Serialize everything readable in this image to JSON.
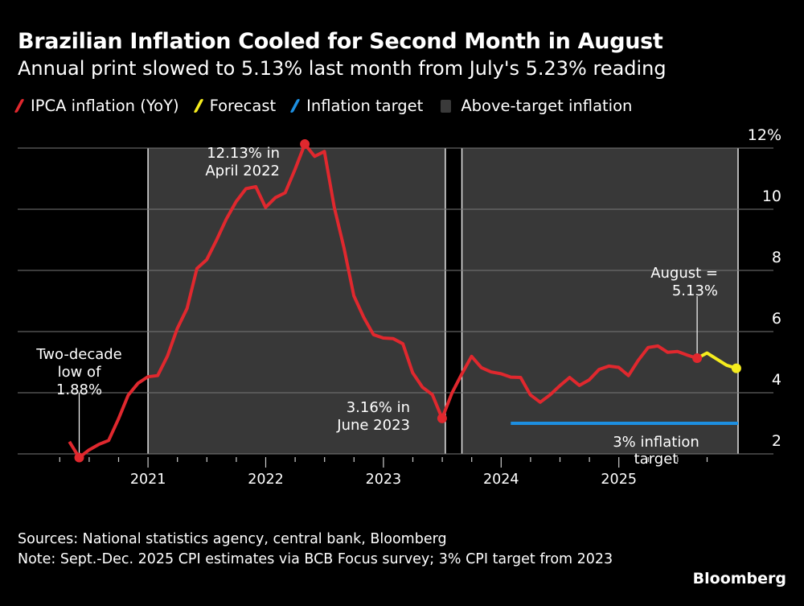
{
  "header": {
    "title": "Brazilian Inflation Cooled for Second Month in August",
    "subtitle": "Annual print slowed to 5.13% last month from July's 5.23% reading"
  },
  "legend": [
    {
      "label": "IPCA inflation (YoY)",
      "color": "#e0282e",
      "kind": "line"
    },
    {
      "label": "Forecast",
      "color": "#f5ec1e",
      "kind": "line"
    },
    {
      "label": "Inflation target",
      "color": "#1d8fe1",
      "kind": "line"
    },
    {
      "label": "Above-target inflation",
      "color": "#3a3a3a",
      "kind": "area"
    }
  ],
  "footer": {
    "sources": "Sources: National statistics agency, central bank, Bloomberg",
    "note": "Note: Sept.-Dec. 2025 CPI estimates via BCB Focus survey; 3% CPI target from 2023",
    "brand": "Bloomberg"
  },
  "chart_data": {
    "type": "line",
    "title": "Brazilian Inflation Cooled for Second Month in August",
    "xlabel": "",
    "ylabel": "",
    "ylim": [
      1.6,
      12
    ],
    "yticks": [
      2,
      4,
      6,
      8,
      10,
      12
    ],
    "ytick_labels": [
      "2",
      "4",
      "6",
      "8",
      "10",
      "12%"
    ],
    "xticks": [
      "2021",
      "2022",
      "2023",
      "2024",
      "2025"
    ],
    "grid": true,
    "legend_position": "top",
    "start_month": "2020-04",
    "series": [
      {
        "name": "IPCA inflation (YoY)",
        "color": "#e0282e",
        "values": [
          2.4,
          1.88,
          2.13,
          2.31,
          2.44,
          3.14,
          3.92,
          4.31,
          4.52,
          4.56,
          5.2,
          6.1,
          6.76,
          8.06,
          8.35,
          8.99,
          9.68,
          10.25,
          10.67,
          10.74,
          10.06,
          10.38,
          10.54,
          11.3,
          12.13,
          11.73,
          11.89,
          10.07,
          8.73,
          7.17,
          6.47,
          5.9,
          5.79,
          5.77,
          5.6,
          4.65,
          4.18,
          3.94,
          3.16,
          3.99,
          4.61,
          5.19,
          4.82,
          4.68,
          4.62,
          4.51,
          4.5,
          3.93,
          3.69,
          3.93,
          4.23,
          4.5,
          4.24,
          4.42,
          4.76,
          4.87,
          4.83,
          4.56,
          5.06,
          5.48,
          5.53,
          5.32,
          5.35,
          5.23,
          5.13
        ]
      },
      {
        "name": "Forecast",
        "color": "#f5ec1e",
        "start_month": "2025-08",
        "values": [
          5.13,
          5.3,
          5.1,
          4.9,
          4.8
        ]
      },
      {
        "name": "Inflation target",
        "color": "#1d8fe1",
        "start_month": "2024-01",
        "end_month": "2025-12",
        "value": 3.0
      }
    ],
    "shaded_regions": [
      {
        "label": "Above-target inflation",
        "from": "2021-01",
        "to": "2023-06"
      },
      {
        "label": "Above-target inflation",
        "from": "2023-09",
        "to": "2025-12"
      }
    ],
    "annotations": [
      {
        "text": "Two-decade low of 1.88%",
        "lines": [
          "Two-decade",
          "low of",
          "1.88%"
        ],
        "month": "2020-05",
        "value": 1.88
      },
      {
        "text": "12.13% in April 2022",
        "lines": [
          "12.13% in",
          "April 2022"
        ],
        "month": "2022-04",
        "value": 12.13
      },
      {
        "text": "3.16% in June 2023",
        "lines": [
          "3.16% in",
          "June 2023"
        ],
        "month": "2023-06",
        "value": 3.16
      },
      {
        "text": "August = 5.13%",
        "lines": [
          "August =",
          "5.13%"
        ],
        "month": "2025-08",
        "value": 5.13
      },
      {
        "text": "3% inflation target",
        "lines": [
          "3% inflation",
          "target"
        ],
        "month": "2025-03",
        "value": 3.0
      }
    ]
  }
}
